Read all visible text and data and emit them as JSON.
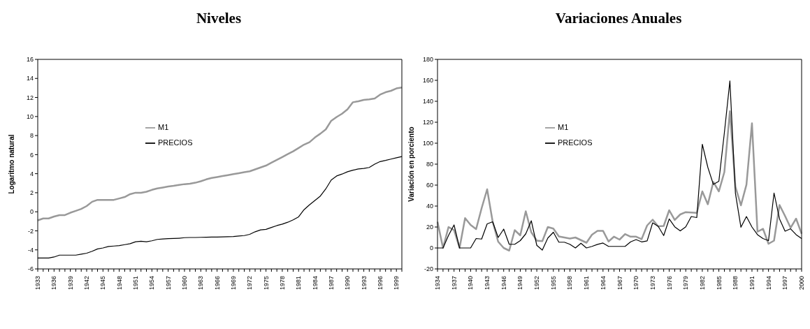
{
  "chart_data": [
    {
      "type": "line",
      "title": "Niveles",
      "ylabel": "Logaritmo natural",
      "categories": [
        "1933",
        null,
        null,
        "1936",
        null,
        null,
        "1939",
        null,
        null,
        "1942",
        null,
        null,
        "1945",
        null,
        null,
        "1948",
        null,
        null,
        "1951",
        null,
        null,
        "1954",
        null,
        null,
        "1957",
        null,
        null,
        "1960",
        null,
        null,
        "1963",
        null,
        null,
        "1966",
        null,
        null,
        "1969",
        null,
        null,
        "1972",
        null,
        null,
        "1975",
        null,
        null,
        "1978",
        null,
        null,
        "1981",
        null,
        null,
        "1984",
        null,
        null,
        "1987",
        null,
        null,
        "1990",
        null,
        null,
        "1993",
        null,
        null,
        "1996",
        null,
        null,
        "1999",
        null
      ],
      "series": [
        {
          "name": "M1",
          "color": "#999999",
          "values": [
            -0.9,
            -0.7,
            -0.7,
            -0.5,
            -0.35,
            -0.35,
            -0.1,
            0.1,
            0.3,
            0.6,
            1.05,
            1.25,
            1.25,
            1.25,
            1.25,
            1.4,
            1.55,
            1.85,
            2.0,
            2.0,
            2.1,
            2.3,
            2.45,
            2.55,
            2.65,
            2.72,
            2.82,
            2.9,
            2.95,
            3.05,
            3.2,
            3.4,
            3.55,
            3.65,
            3.75,
            3.85,
            3.95,
            4.05,
            4.15,
            4.25,
            4.45,
            4.65,
            4.85,
            5.15,
            5.45,
            5.75,
            6.05,
            6.35,
            6.7,
            7.05,
            7.3,
            7.8,
            8.2,
            8.65,
            9.55,
            9.95,
            10.3,
            10.75,
            11.5,
            11.6,
            11.75,
            11.8,
            11.9,
            12.3,
            12.55,
            12.7,
            12.95,
            13.05
          ]
        },
        {
          "name": "PRECIOS",
          "color": "#000000",
          "values": [
            -4.85,
            -4.85,
            -4.85,
            -4.75,
            -4.55,
            -4.55,
            -4.55,
            -4.55,
            -4.45,
            -4.35,
            -4.15,
            -3.9,
            -3.8,
            -3.65,
            -3.6,
            -3.55,
            -3.45,
            -3.35,
            -3.15,
            -3.1,
            -3.15,
            -3.05,
            -2.9,
            -2.85,
            -2.82,
            -2.8,
            -2.78,
            -2.72,
            -2.7,
            -2.7,
            -2.68,
            -2.67,
            -2.66,
            -2.66,
            -2.63,
            -2.62,
            -2.6,
            -2.55,
            -2.5,
            -2.37,
            -2.1,
            -1.9,
            -1.85,
            -1.65,
            -1.45,
            -1.3,
            -1.1,
            -0.85,
            -0.53,
            0.22,
            0.73,
            1.18,
            1.65,
            2.4,
            3.33,
            3.76,
            3.96,
            4.2,
            4.37,
            4.49,
            4.55,
            4.65,
            5.0,
            5.27,
            5.39,
            5.53,
            5.67,
            5.8
          ]
        }
      ],
      "ylim": [
        -6,
        16
      ],
      "yticks": [
        -6,
        -4,
        -2,
        0,
        2,
        4,
        6,
        8,
        10,
        12,
        14,
        16
      ],
      "grid": false,
      "legend": "top",
      "marker": "none"
    },
    {
      "type": "line",
      "title": "Variaciones Anuales",
      "ylabel": "Variación en porciento",
      "categories": [
        "1934",
        null,
        null,
        "1937",
        null,
        null,
        "1940",
        null,
        null,
        "1943",
        null,
        null,
        "1946",
        null,
        null,
        "1949",
        null,
        null,
        "1952",
        null,
        null,
        "1955",
        null,
        null,
        "1958",
        null,
        null,
        "1961",
        null,
        null,
        "1964",
        null,
        null,
        "1967",
        null,
        null,
        "1970",
        null,
        null,
        "1973",
        null,
        null,
        "1976",
        null,
        null,
        "1979",
        null,
        null,
        "1982",
        null,
        null,
        "1985",
        null,
        null,
        "1988",
        null,
        null,
        "1991",
        null,
        null,
        "1994",
        null,
        null,
        "1997",
        null,
        null,
        "2000"
      ],
      "series": [
        {
          "name": "M1",
          "color": "#999999",
          "values": [
            25,
            0,
            20,
            17,
            0,
            28.5,
            22,
            18,
            38,
            56,
            25,
            6,
            0,
            -2.5,
            17,
            12,
            35,
            15,
            7,
            6.5,
            20,
            18.5,
            11,
            10,
            9,
            10,
            7.5,
            5,
            12.7,
            16.4,
            16.4,
            6.2,
            10.8,
            8,
            13.3,
            10.8,
            10.8,
            8.4,
            21.5,
            27,
            20.7,
            21,
            36,
            26.7,
            32,
            34.2,
            33.8,
            33.5,
            54,
            41.7,
            63,
            54,
            72.5,
            130.5,
            58.5,
            40.7,
            60.4,
            119,
            15.5,
            18.3,
            4,
            7,
            41,
            30.5,
            19.3,
            28,
            13.6
          ]
        },
        {
          "name": "PRECIOS",
          "color": "#000000",
          "values": [
            0,
            0,
            12,
            22,
            0,
            0,
            0,
            9,
            8.5,
            23,
            25,
            10,
            18,
            3.5,
            3.5,
            7,
            13.5,
            26,
            2.5,
            -2,
            9.5,
            15,
            5.5,
            5.5,
            3.5,
            0,
            4.5,
            0,
            1.5,
            3.4,
            4.7,
            1.5,
            1.5,
            1.5,
            1.5,
            5.8,
            8,
            5.8,
            6.7,
            24,
            20.7,
            11.8,
            27.7,
            20.2,
            16.3,
            20.2,
            30,
            29,
            99,
            77,
            60.7,
            63.7,
            110,
            159.4,
            52.3,
            19.8,
            30,
            20,
            12.7,
            9,
            7,
            52.5,
            27.7,
            16,
            18.3,
            12.7,
            9
          ]
        }
      ],
      "ylim": [
        -20,
        180
      ],
      "yticks": [
        -20,
        0,
        20,
        40,
        60,
        80,
        100,
        120,
        140,
        160,
        180
      ],
      "grid": false,
      "legend": "top",
      "marker": "none"
    }
  ]
}
